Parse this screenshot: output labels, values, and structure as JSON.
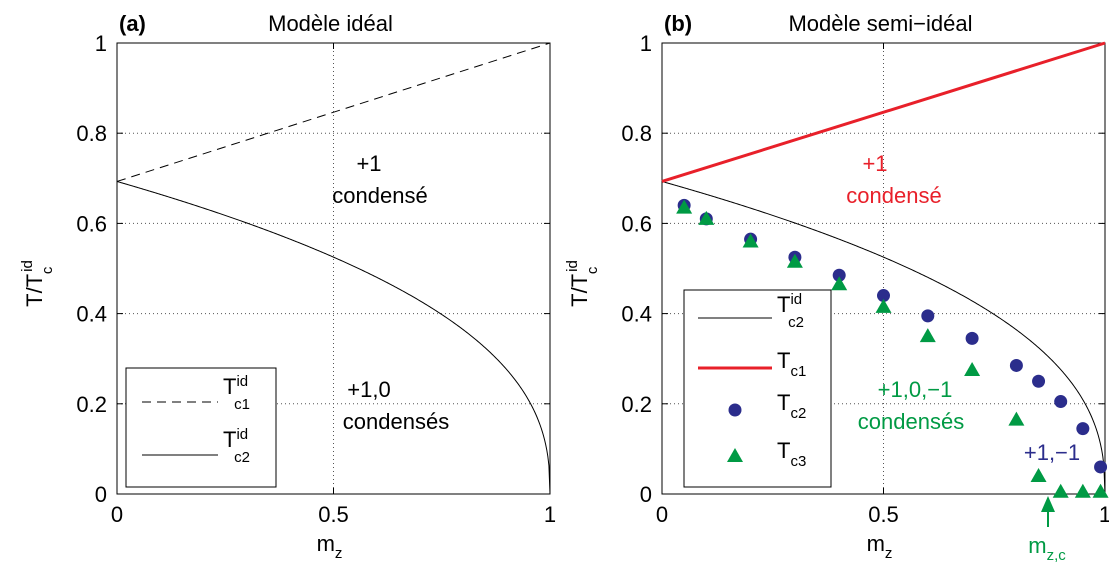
{
  "chart_data": [
    {
      "type": "line",
      "panel_label": "(a)",
      "title": "Modèle idéal",
      "xlabel": "z",
      "ylabel": "T/T",
      "xlim": [
        0,
        1
      ],
      "ylim": [
        0,
        1
      ],
      "xticks": [
        "0",
        "0.5",
        "1"
      ],
      "yticks": [
        "0",
        "0.2",
        "0.4",
        "0.6",
        "0.8",
        "1"
      ],
      "grid": true,
      "legend": "bottom-left",
      "annotations": [
        "+1",
        "condensé",
        "+1,0",
        "condensés"
      ],
      "series": [
        {
          "name": "T",
          "x": [
            0,
            1
          ],
          "y": [
            0.693,
            1.0
          ],
          "style": "dashed",
          "color": "#000000"
        },
        {
          "name": "T",
          "x": [
            0,
            0.1,
            0.2,
            0.3,
            0.4,
            0.5,
            0.6,
            0.7,
            0.8,
            0.9,
            0.95,
            0.98,
            1.0
          ],
          "y": [
            0.693,
            0.645,
            0.602,
            0.56,
            0.518,
            0.475,
            0.428,
            0.376,
            0.313,
            0.227,
            0.163,
            0.104,
            0.0
          ],
          "style": "solid",
          "color": "#000000"
        }
      ]
    },
    {
      "type": "line",
      "panel_label": "(b)",
      "title": "Modèle semi−idéal",
      "xlabel": "z",
      "ylabel": "T/T",
      "xlim": [
        0,
        1
      ],
      "ylim": [
        0,
        1
      ],
      "xticks": [
        "0",
        "0.5",
        "1"
      ],
      "yticks": [
        "0",
        "0.2",
        "0.4",
        "0.6",
        "0.8",
        "1"
      ],
      "grid": true,
      "legend": "bottom-left",
      "annotations": [
        "+1",
        "condensé",
        "+1,0,−1",
        "condensés",
        "+1,−1",
        "m",
        "z,c"
      ],
      "annotation_colors": [
        "#e8202a",
        "#e8202a",
        "#009a44",
        "#009a44",
        "#2b2d8c",
        "#009a44",
        "#009a44"
      ],
      "series": [
        {
          "name": "T",
          "x": [
            0,
            0.1,
            0.2,
            0.3,
            0.4,
            0.5,
            0.6,
            0.7,
            0.8,
            0.9,
            0.95,
            0.98,
            1.0
          ],
          "y": [
            0.693,
            0.645,
            0.602,
            0.56,
            0.518,
            0.475,
            0.428,
            0.376,
            0.313,
            0.227,
            0.163,
            0.104,
            0.0
          ],
          "style": "solid",
          "color": "#000000"
        },
        {
          "name": "T",
          "x": [
            0,
            1
          ],
          "y": [
            0.693,
            1.0
          ],
          "style": "solid-thick",
          "color": "#e8202a"
        },
        {
          "name": "T",
          "x": [
            0.05,
            0.1,
            0.2,
            0.3,
            0.4,
            0.5,
            0.6,
            0.7,
            0.8,
            0.85,
            0.9,
            0.95,
            0.99
          ],
          "y": [
            0.64,
            0.61,
            0.565,
            0.525,
            0.485,
            0.44,
            0.395,
            0.345,
            0.285,
            0.25,
            0.205,
            0.145,
            0.06
          ],
          "style": "circle",
          "color": "#2b2d8c"
        },
        {
          "name": "T",
          "x": [
            0.05,
            0.1,
            0.2,
            0.3,
            0.4,
            0.5,
            0.6,
            0.7,
            0.8,
            0.85,
            0.9,
            0.95,
            0.99
          ],
          "y": [
            0.635,
            0.61,
            0.56,
            0.515,
            0.465,
            0.415,
            0.35,
            0.275,
            0.165,
            0.04,
            0.005,
            0.005,
            0.005
          ],
          "style": "triangle",
          "color": "#009a44"
        }
      ]
    }
  ]
}
